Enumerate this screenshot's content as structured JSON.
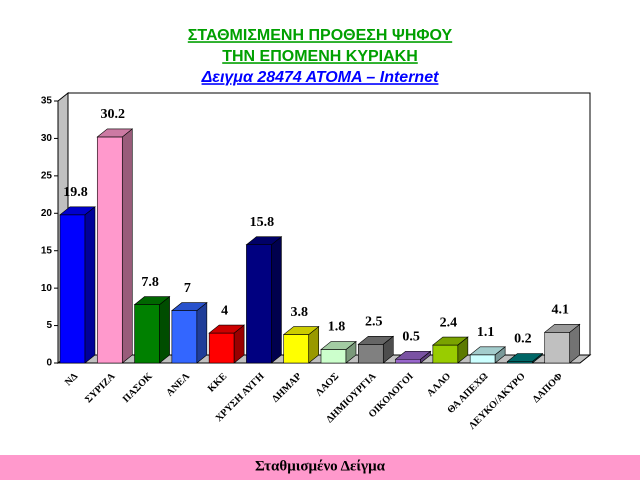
{
  "chart_data": {
    "type": "bar3d",
    "title": [
      "ΣΤΑΘΜΙΣΜΕΝΗ ΠΡΟΘΕΣΗ ΨΗΦΟΥ",
      "ΤΗΝ ΕΠΟΜΕΝΗ ΚΥΡΙΑΚΗ",
      "Δειγμα 28474  ΑΤΟΜΑ – Internet"
    ],
    "title_colors": [
      "#00a000",
      "#00a000",
      "#0000ff"
    ],
    "footer": "Σταθμισμένο Δείγμα",
    "categories": [
      "ΝΔ",
      "ΣΥΡΙΖΑ",
      "ΠΑΣΟΚ",
      "ΑΝΕΛ",
      "ΚΚΕ",
      "ΧΡΥΣΗ ΑΥΓΗ",
      "ΔΗΜΑΡ",
      "ΛΑΟΣ",
      "ΔΗΜΙΟΥΡΓΙΑ",
      "ΟΙΚΟΛΟΓΟΙ",
      "ΑΛΛΟ",
      "ΘΑ ΑΠΕΧΩ",
      "ΛΕΥΚΟ/ΑΚΥΡΟ",
      "ΔΑΠΟΦ"
    ],
    "values": [
      19.8,
      30.2,
      7.8,
      7,
      4,
      15.8,
      3.8,
      1.8,
      2.5,
      0.5,
      2.4,
      1.1,
      0.2,
      4.1
    ],
    "colors": [
      "#0000ff",
      "#ff99cc",
      "#008000",
      "#3366ff",
      "#ff0000",
      "#000080",
      "#ffff00",
      "#ccffcc",
      "#808080",
      "#9966cc",
      "#99cc00",
      "#ccffff",
      "#008080",
      "#c0c0c0"
    ],
    "ylim": [
      0,
      35
    ],
    "yticks": [
      0,
      5,
      10,
      15,
      20,
      25,
      30,
      35
    ]
  }
}
